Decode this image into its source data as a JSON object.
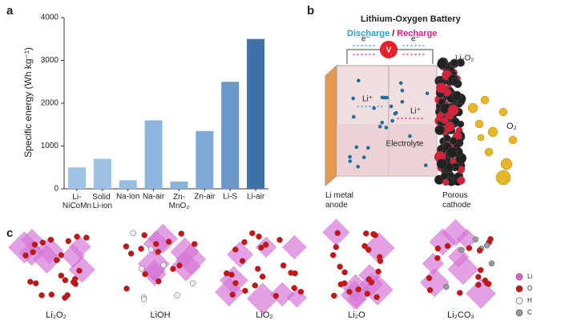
{
  "panel_labels": [
    "a",
    "b",
    "c"
  ],
  "chart_data": {
    "type": "bar",
    "ylabel": "Specific energy (Wh kg⁻¹)",
    "categories": [
      "Li-NiCoMn",
      "Solid Li-ion",
      "Na-ion",
      "Na-air",
      "Zn-MnO₂",
      "Zn-air",
      "Li-S",
      "Li-air"
    ],
    "values": [
      500,
      700,
      200,
      1600,
      170,
      1350,
      2500,
      3500
    ],
    "colors": [
      "#9dc3e6",
      "#9bc1e5",
      "#98bee3",
      "#8db6de",
      "#8bb4dd",
      "#7ea9d6",
      "#6a98c9",
      "#3f72a8"
    ],
    "ylim": [
      0,
      4000
    ],
    "yticks": [
      0,
      1000,
      2000,
      3000,
      4000
    ]
  },
  "diagram": {
    "title": "Lithium-Oxygen Battery",
    "discharge": "Discharge",
    "slash": "/",
    "recharge": "Recharge",
    "voltmeter": "V",
    "electron_left": "e⁻",
    "electron_right": "e⁻",
    "product": "Li₂O₂",
    "li_ion_left": "Li⁺",
    "li_ion_right": "Li⁺",
    "electrolyte": "Electrolyte",
    "gas": "O₂",
    "anode": [
      "Li metal",
      "anode"
    ],
    "cathode": [
      "Porous",
      "cathode"
    ]
  },
  "structures": [
    "Li₂O₂",
    "LiOH",
    "LiO₂",
    "Li₂O",
    "Li₂CO₃"
  ],
  "legend": [
    "Li",
    "O",
    "H",
    "C"
  ]
}
